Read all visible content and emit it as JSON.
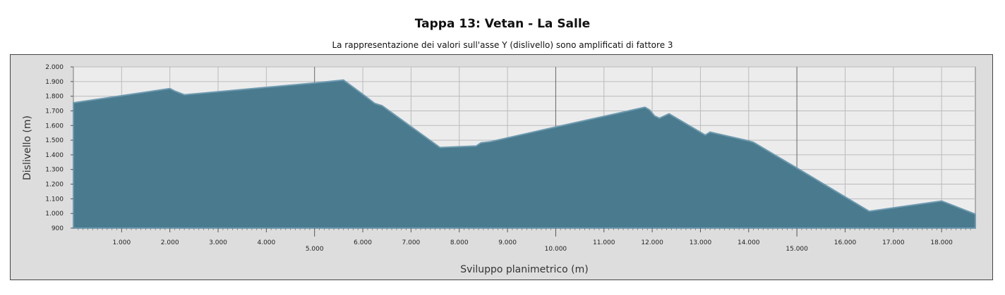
{
  "chart_data": {
    "type": "area",
    "title": "Tappa 13: Vetan - La Salle",
    "subtitle": "La rappresentazione dei valori sull'asse Y (dislivello) sono amplificati di fattore 3",
    "xlabel": "Sviluppo planimetrico (m)",
    "ylabel": "Dislivello (m)",
    "xlim": [
      0,
      18700
    ],
    "ylim": [
      900,
      2000
    ],
    "x_ticks": [
      {
        "value": 1000,
        "label": "1.000",
        "major": false
      },
      {
        "value": 2000,
        "label": "2.000",
        "major": false
      },
      {
        "value": 3000,
        "label": "3.000",
        "major": false
      },
      {
        "value": 4000,
        "label": "4.000",
        "major": false
      },
      {
        "value": 5000,
        "label": "5.000",
        "major": true
      },
      {
        "value": 6000,
        "label": "6.000",
        "major": false
      },
      {
        "value": 7000,
        "label": "7.000",
        "major": false
      },
      {
        "value": 8000,
        "label": "8.000",
        "major": false
      },
      {
        "value": 9000,
        "label": "9.000",
        "major": false
      },
      {
        "value": 10000,
        "label": "10.000",
        "major": true
      },
      {
        "value": 11000,
        "label": "11.000",
        "major": false
      },
      {
        "value": 12000,
        "label": "12.000",
        "major": false
      },
      {
        "value": 13000,
        "label": "13.000",
        "major": false
      },
      {
        "value": 14000,
        "label": "14.000",
        "major": false
      },
      {
        "value": 15000,
        "label": "15.000",
        "major": true
      },
      {
        "value": 16000,
        "label": "16.000",
        "major": false
      },
      {
        "value": 17000,
        "label": "17.000",
        "major": false
      },
      {
        "value": 18000,
        "label": "18.000",
        "major": false
      }
    ],
    "y_ticks": [
      {
        "value": 900,
        "label": "900"
      },
      {
        "value": 1000,
        "label": "1.000"
      },
      {
        "value": 1100,
        "label": "1.100"
      },
      {
        "value": 1200,
        "label": "1.200"
      },
      {
        "value": 1300,
        "label": "1.300"
      },
      {
        "value": 1400,
        "label": "1.400"
      },
      {
        "value": 1500,
        "label": "1.500"
      },
      {
        "value": 1600,
        "label": "1.600"
      },
      {
        "value": 1700,
        "label": "1.700"
      },
      {
        "value": 1800,
        "label": "1.800"
      },
      {
        "value": 1900,
        "label": "1.900"
      },
      {
        "value": 2000,
        "label": "2.000"
      }
    ],
    "grid": true,
    "series": [
      {
        "color": "#4a7a8e",
        "x": [
          0,
          2000,
          2100,
          2300,
          5000,
          5600,
          6050,
          6250,
          6400,
          7600,
          8350,
          8450,
          8650,
          10000,
          11850,
          11950,
          12050,
          12150,
          12350,
          13100,
          13200,
          14000,
          14100,
          15000,
          16500,
          18000,
          18700
        ],
        "y": [
          1755,
          1852,
          1835,
          1810,
          1890,
          1910,
          1800,
          1750,
          1735,
          1450,
          1460,
          1482,
          1490,
          1590,
          1725,
          1705,
          1665,
          1650,
          1680,
          1535,
          1555,
          1495,
          1485,
          1310,
          1015,
          1085,
          995
        ]
      }
    ]
  }
}
